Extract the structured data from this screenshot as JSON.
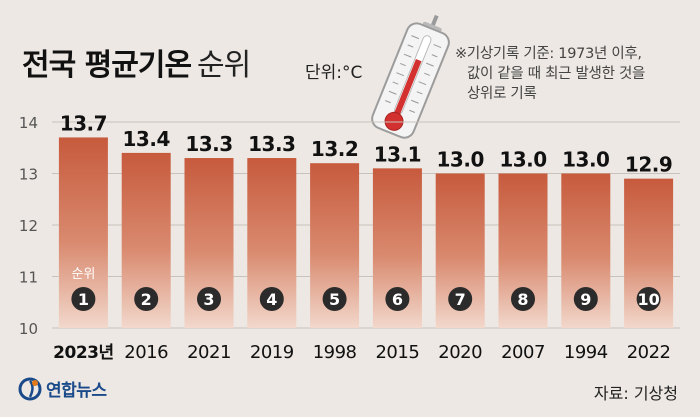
{
  "header": {
    "title": "전국 평균기온",
    "title_suffix": "순위",
    "unit": "단위:°C",
    "note_lines": [
      "※기상기록 기준: 1973년 이후,",
      "값이 같을 때 최근 발생한 것을",
      "상위로 기록"
    ]
  },
  "footer": {
    "source": "자료: 기상청",
    "logo_text": "연합뉴스"
  },
  "chart_data": {
    "type": "bar",
    "categories": [
      "2023년",
      "2016",
      "2021",
      "2019",
      "1998",
      "2015",
      "2020",
      "2007",
      "1994",
      "2022"
    ],
    "values": [
      13.7,
      13.4,
      13.3,
      13.3,
      13.2,
      13.1,
      13.0,
      13.0,
      13.0,
      12.9
    ],
    "value_labels": [
      "13.7",
      "13.4",
      "13.3",
      "13.3",
      "13.2",
      "13.1",
      "13.0",
      "13.0",
      "13.0",
      "12.9"
    ],
    "ranks": [
      "1",
      "2",
      "3",
      "4",
      "5",
      "6",
      "7",
      "8",
      "9",
      "10"
    ],
    "rank_label": "순위",
    "yticks": [
      "10",
      "11",
      "12",
      "13",
      "14"
    ],
    "ylim": [
      10,
      14
    ],
    "grid": true,
    "colors": {
      "bar_top": "#c75a3d",
      "bar_bottom": "#f2d8cc",
      "rank_circle": "#2b2b2b",
      "background": "#ede8e3"
    }
  }
}
